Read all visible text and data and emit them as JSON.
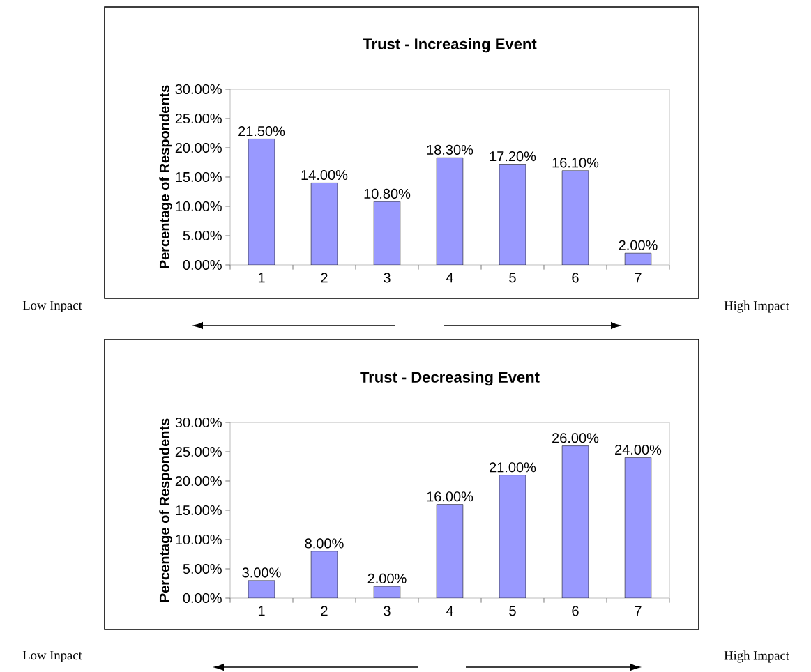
{
  "chart_data": [
    {
      "type": "bar",
      "title": "Trust - Increasing Event",
      "ylabel": "Percentage of Respondents",
      "categories": [
        "1",
        "2",
        "3",
        "4",
        "5",
        "6",
        "7"
      ],
      "values": [
        21.5,
        14.0,
        10.8,
        18.3,
        17.2,
        16.1,
        2.0
      ],
      "value_labels": [
        "21.50%",
        "14.00%",
        "10.80%",
        "18.30%",
        "17.20%",
        "16.10%",
        "2.00%"
      ],
      "color": "#9999ff",
      "ylim": [
        0,
        30
      ],
      "yticks": [
        {
          "value": 0,
          "label": "0.00%"
        },
        {
          "value": 5,
          "label": "5.00%"
        },
        {
          "value": 10,
          "label": "10.00%"
        },
        {
          "value": 15,
          "label": "15.00%"
        },
        {
          "value": 20,
          "label": "20.00%"
        },
        {
          "value": 25,
          "label": "25.00%"
        },
        {
          "value": 30,
          "label": "30.00%"
        }
      ],
      "annotations": [
        "Low Inpact",
        "High Impact"
      ]
    },
    {
      "type": "bar",
      "title": "Trust - Decreasing Event",
      "ylabel": "Percentage of Respondents",
      "categories": [
        "1",
        "2",
        "3",
        "4",
        "5",
        "6",
        "7"
      ],
      "values": [
        3.0,
        8.0,
        2.0,
        16.0,
        21.0,
        26.0,
        24.0
      ],
      "value_labels": [
        "3.00%",
        "8.00%",
        "2.00%",
        "16.00%",
        "21.00%",
        "26.00%",
        "24.00%"
      ],
      "color": "#9999ff",
      "ylim": [
        0,
        30
      ],
      "yticks": [
        {
          "value": 0,
          "label": "0.00%"
        },
        {
          "value": 5,
          "label": "5.00%"
        },
        {
          "value": 10,
          "label": "10.00%"
        },
        {
          "value": 15,
          "label": "15.00%"
        },
        {
          "value": 20,
          "label": "20.00%"
        },
        {
          "value": 25,
          "label": "25.00%"
        },
        {
          "value": 30,
          "label": "30.00%"
        }
      ],
      "annotations": [
        "Low Inpact",
        "High Impact"
      ]
    }
  ]
}
